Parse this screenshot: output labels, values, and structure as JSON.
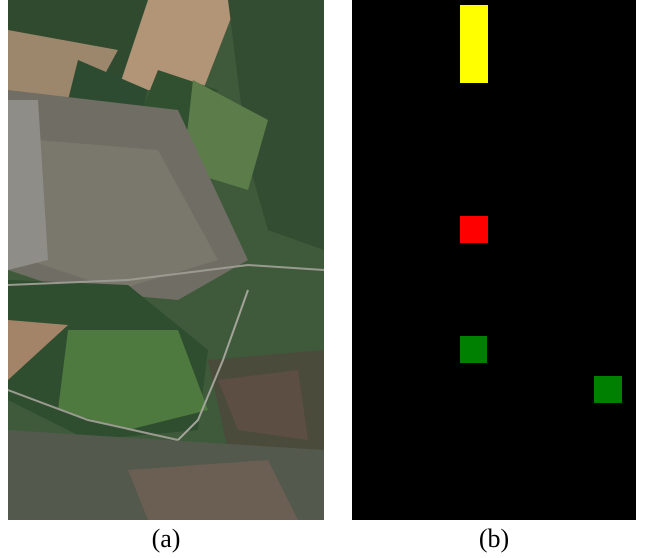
{
  "captions": {
    "a": "(a)",
    "b": "(b)"
  },
  "colors": {
    "mask_background": "#000000",
    "yellow": "#ffff00",
    "red": "#ff0000",
    "green": "#008000"
  }
}
